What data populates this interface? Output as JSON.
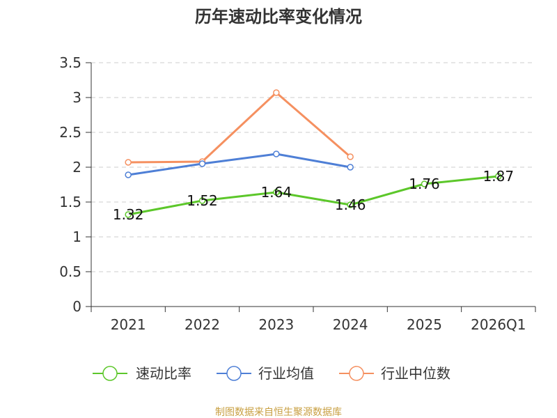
{
  "chart_data": {
    "type": "line",
    "title": "历年速动比率变化情况",
    "categories": [
      "2021",
      "2022",
      "2023",
      "2024",
      "2025",
      "2026Q1"
    ],
    "ylim": [
      0,
      3.5
    ],
    "yticks": [
      "0",
      "0.5",
      "1",
      "1.5",
      "2",
      "2.5",
      "3",
      "3.5"
    ],
    "ytick_values": [
      0,
      0.5,
      1,
      1.5,
      2,
      2.5,
      3,
      3.5
    ],
    "grid": true,
    "legend_position": "bottom",
    "series": [
      {
        "name": "速动比率",
        "color": "#5cc72a",
        "values": [
          1.32,
          1.52,
          1.64,
          1.46,
          1.76,
          1.87
        ],
        "labels": [
          "1.32",
          "1.52",
          "1.64",
          "1.46",
          "1.76",
          "1.87"
        ]
      },
      {
        "name": "行业均值",
        "color": "#4e7fd6",
        "values": [
          1.89,
          2.05,
          2.19,
          2.0,
          null,
          null
        ]
      },
      {
        "name": "行业中位数",
        "color": "#f59060",
        "values": [
          2.07,
          2.08,
          3.07,
          2.15,
          null,
          null
        ]
      }
    ],
    "source": "制图数据来自恒生聚源数据库"
  }
}
